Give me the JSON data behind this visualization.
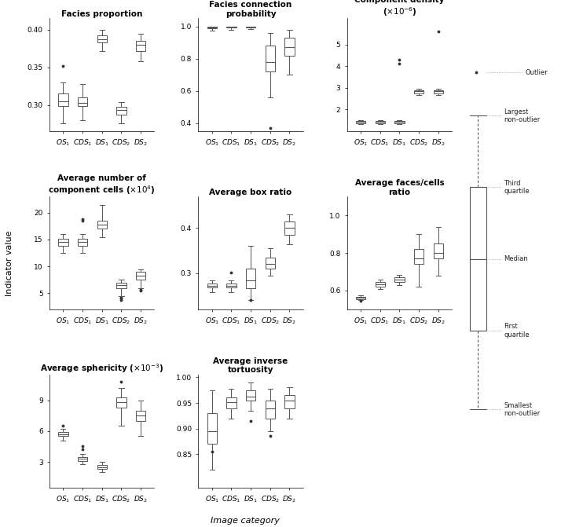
{
  "categories": [
    "$OS_1$",
    "$CDS_1$",
    "$DS_1$",
    "$CDS_2$",
    "$DS_2$"
  ],
  "plots": [
    {
      "title": "Facies proportion",
      "ylim": [
        0.265,
        0.415
      ],
      "yticks": [
        0.3,
        0.35,
        0.4
      ],
      "yticklabels": [
        "0.30",
        "0.35",
        "0.40"
      ],
      "boxes": [
        {
          "q1": 0.298,
          "median": 0.305,
          "q3": 0.315,
          "whislo": 0.275,
          "whishi": 0.33,
          "fliers": [
            0.352
          ]
        },
        {
          "q1": 0.298,
          "median": 0.303,
          "q3": 0.31,
          "whislo": 0.28,
          "whishi": 0.328,
          "fliers": []
        },
        {
          "q1": 0.383,
          "median": 0.387,
          "q3": 0.392,
          "whislo": 0.372,
          "whishi": 0.4,
          "fliers": []
        },
        {
          "q1": 0.287,
          "median": 0.293,
          "q3": 0.297,
          "whislo": 0.276,
          "whishi": 0.304,
          "fliers": []
        },
        {
          "q1": 0.372,
          "median": 0.38,
          "q3": 0.385,
          "whislo": 0.358,
          "whishi": 0.395,
          "fliers": []
        }
      ]
    },
    {
      "title": "Facies connection\nprobability",
      "ylim": [
        0.35,
        1.05
      ],
      "yticks": [
        0.4,
        0.6,
        0.8,
        1.0
      ],
      "yticklabels": [
        "0.4",
        "0.6",
        "0.8",
        "1.0"
      ],
      "boxes": [
        {
          "q1": 0.988,
          "median": 0.995,
          "q3": 1.0,
          "whislo": 0.975,
          "whishi": 1.0,
          "fliers": []
        },
        {
          "q1": 0.993,
          "median": 0.998,
          "q3": 1.0,
          "whislo": 0.98,
          "whishi": 1.0,
          "fliers": []
        },
        {
          "q1": 0.993,
          "median": 0.998,
          "q3": 1.0,
          "whislo": 0.982,
          "whishi": 1.0,
          "fliers": []
        },
        {
          "q1": 0.72,
          "median": 0.78,
          "q3": 0.88,
          "whislo": 0.56,
          "whishi": 0.96,
          "fliers": [
            0.37
          ]
        },
        {
          "q1": 0.82,
          "median": 0.87,
          "q3": 0.93,
          "whislo": 0.7,
          "whishi": 0.98,
          "fliers": []
        }
      ]
    },
    {
      "title": "Component density\n($\\times10^{-6}$)",
      "ylim": [
        1.0,
        6.2
      ],
      "yticks": [
        2,
        3,
        4,
        5
      ],
      "yticklabels": [
        "2",
        "3",
        "4",
        "5"
      ],
      "boxes": [
        {
          "q1": 1.38,
          "median": 1.42,
          "q3": 1.47,
          "whislo": 1.32,
          "whishi": 1.52,
          "fliers": []
        },
        {
          "q1": 1.38,
          "median": 1.42,
          "q3": 1.47,
          "whislo": 1.32,
          "whishi": 1.52,
          "fliers": []
        },
        {
          "q1": 1.38,
          "median": 1.42,
          "q3": 1.47,
          "whislo": 1.32,
          "whishi": 1.52,
          "fliers": [
            4.1,
            4.3
          ]
        },
        {
          "q1": 2.75,
          "median": 2.85,
          "q3": 2.9,
          "whislo": 2.65,
          "whishi": 2.95,
          "fliers": []
        },
        {
          "q1": 2.75,
          "median": 2.85,
          "q3": 2.9,
          "whislo": 2.65,
          "whishi": 2.95,
          "fliers": [
            5.6
          ]
        }
      ]
    },
    {
      "title": "Average number of\ncomponent cells ($\\times10^{4}$)",
      "ylim": [
        2,
        23
      ],
      "yticks": [
        5,
        10,
        15,
        20
      ],
      "yticklabels": [
        "5",
        "10",
        "15",
        "20"
      ],
      "boxes": [
        {
          "q1": 13.8,
          "median": 14.5,
          "q3": 15.2,
          "whislo": 12.5,
          "whishi": 16.0,
          "fliers": []
        },
        {
          "q1": 13.8,
          "median": 14.5,
          "q3": 15.2,
          "whislo": 12.5,
          "whishi": 16.0,
          "fliers": [
            18.5,
            18.8
          ]
        },
        {
          "q1": 17.0,
          "median": 17.8,
          "q3": 18.5,
          "whislo": 15.5,
          "whishi": 21.5,
          "fliers": []
        },
        {
          "q1": 6.0,
          "median": 6.5,
          "q3": 7.0,
          "whislo": 4.5,
          "whishi": 7.5,
          "fliers": [
            3.8,
            4.0,
            4.2
          ]
        },
        {
          "q1": 7.5,
          "median": 8.2,
          "q3": 9.0,
          "whislo": 6.0,
          "whishi": 9.5,
          "fliers": [
            5.5,
            5.7
          ]
        }
      ]
    },
    {
      "title": "Average box ratio",
      "ylim": [
        0.22,
        0.47
      ],
      "yticks": [
        0.3,
        0.4
      ],
      "yticklabels": [
        "0.3",
        "0.4"
      ],
      "boxes": [
        {
          "q1": 0.268,
          "median": 0.272,
          "q3": 0.278,
          "whislo": 0.258,
          "whishi": 0.285,
          "fliers": []
        },
        {
          "q1": 0.268,
          "median": 0.272,
          "q3": 0.278,
          "whislo": 0.258,
          "whishi": 0.285,
          "fliers": [
            0.302
          ]
        },
        {
          "q1": 0.267,
          "median": 0.285,
          "q3": 0.31,
          "whislo": 0.24,
          "whishi": 0.36,
          "fliers": [
            0.24
          ]
        },
        {
          "q1": 0.31,
          "median": 0.32,
          "q3": 0.335,
          "whislo": 0.295,
          "whishi": 0.355,
          "fliers": []
        },
        {
          "q1": 0.385,
          "median": 0.4,
          "q3": 0.415,
          "whislo": 0.365,
          "whishi": 0.43,
          "fliers": []
        }
      ]
    },
    {
      "title": "Average faces/cells\nratio",
      "ylim": [
        0.5,
        1.1
      ],
      "yticks": [
        0.6,
        0.8,
        1.0
      ],
      "yticklabels": [
        "0.6",
        "0.8",
        "1.0"
      ],
      "boxes": [
        {
          "q1": 0.555,
          "median": 0.562,
          "q3": 0.568,
          "whislo": 0.548,
          "whishi": 0.575,
          "fliers": [
            0.545
          ]
        },
        {
          "q1": 0.62,
          "median": 0.635,
          "q3": 0.645,
          "whislo": 0.608,
          "whishi": 0.66,
          "fliers": []
        },
        {
          "q1": 0.645,
          "median": 0.66,
          "q3": 0.672,
          "whislo": 0.63,
          "whishi": 0.685,
          "fliers": []
        },
        {
          "q1": 0.74,
          "median": 0.77,
          "q3": 0.82,
          "whislo": 0.62,
          "whishi": 0.9,
          "fliers": []
        },
        {
          "q1": 0.77,
          "median": 0.8,
          "q3": 0.85,
          "whislo": 0.68,
          "whishi": 0.94,
          "fliers": []
        }
      ]
    },
    {
      "title": "Average sphericity ($\\times10^{-3}$)",
      "ylim": [
        0.5,
        11.5
      ],
      "yticks": [
        3,
        6,
        9
      ],
      "yticklabels": [
        "3",
        "6",
        "9"
      ],
      "boxes": [
        {
          "q1": 5.5,
          "median": 5.7,
          "q3": 5.9,
          "whislo": 5.1,
          "whishi": 6.2,
          "fliers": [
            6.5
          ]
        },
        {
          "q1": 3.1,
          "median": 3.3,
          "q3": 3.5,
          "whislo": 2.8,
          "whishi": 3.8,
          "fliers": [
            4.2,
            4.5
          ]
        },
        {
          "q1": 2.3,
          "median": 2.5,
          "q3": 2.7,
          "whislo": 2.0,
          "whishi": 3.0,
          "fliers": []
        },
        {
          "q1": 8.3,
          "median": 8.8,
          "q3": 9.3,
          "whislo": 6.5,
          "whishi": 10.2,
          "fliers": [
            10.8
          ]
        },
        {
          "q1": 7.0,
          "median": 7.5,
          "q3": 8.0,
          "whislo": 5.5,
          "whishi": 9.0,
          "fliers": []
        }
      ]
    },
    {
      "title": "Average inverse\ntortuosity",
      "ylim": [
        0.785,
        1.005
      ],
      "yticks": [
        0.85,
        0.9,
        0.95,
        1.0
      ],
      "yticklabels": [
        "0.85",
        "0.90",
        "0.95",
        "1.00"
      ],
      "boxes": [
        {
          "q1": 0.87,
          "median": 0.895,
          "q3": 0.93,
          "whislo": 0.82,
          "whishi": 0.975,
          "fliers": [
            0.855
          ]
        },
        {
          "q1": 0.94,
          "median": 0.952,
          "q3": 0.96,
          "whislo": 0.92,
          "whishi": 0.978,
          "fliers": []
        },
        {
          "q1": 0.955,
          "median": 0.962,
          "q3": 0.975,
          "whislo": 0.935,
          "whishi": 0.99,
          "fliers": [
            0.915
          ]
        },
        {
          "q1": 0.92,
          "median": 0.94,
          "q3": 0.955,
          "whislo": 0.895,
          "whishi": 0.978,
          "fliers": [
            0.885
          ]
        },
        {
          "q1": 0.94,
          "median": 0.955,
          "q3": 0.965,
          "whislo": 0.92,
          "whishi": 0.98,
          "fliers": []
        }
      ]
    }
  ],
  "xlabel": "Image category",
  "box_color": "white",
  "box_edgecolor": "#555555",
  "whisker_color": "#555555",
  "median_color": "#555555",
  "flier_color": "#333333",
  "background_color": "white",
  "legend": {
    "outlier_label": "Outlier",
    "annotations": [
      "Largest\nnon-outlier",
      "Third\nquartile",
      "Median",
      "First\nquartile",
      "Smallest\nnon-outlier"
    ]
  }
}
